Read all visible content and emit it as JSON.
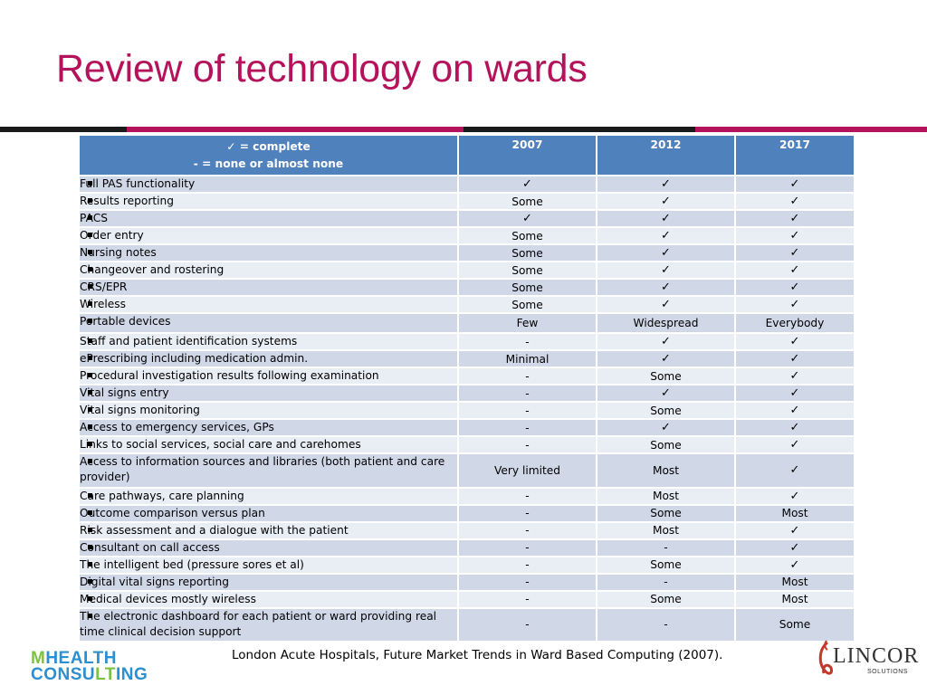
{
  "title": "Review of technology on wards",
  "colors": {
    "title": "#b5125c",
    "header_bg": "#4f81bd",
    "row_odd": "#d0d8e8",
    "row_even": "#e9edf4",
    "rule_dark": "#1a1a1a",
    "rule_accent": "#b5125c"
  },
  "table": {
    "legend_complete": "✓ = complete",
    "legend_none": "-  = none or almost none",
    "years": [
      "2007",
      "2012",
      "2017"
    ],
    "rows": [
      {
        "item": "Full PAS functionality",
        "v2007": "✓",
        "v2012": "✓",
        "v2017": "✓"
      },
      {
        "item": "Results reporting",
        "v2007": "Some",
        "v2012": "✓",
        "v2017": "✓"
      },
      {
        "item": "PACS",
        "v2007": "✓",
        "v2012": "✓",
        "v2017": "✓"
      },
      {
        "item": "Order entry",
        "v2007": "Some",
        "v2012": "✓",
        "v2017": "✓"
      },
      {
        "item": "Nursing notes",
        "v2007": "Some",
        "v2012": "✓",
        "v2017": "✓"
      },
      {
        "item": "Changeover and rostering",
        "v2007": "Some",
        "v2012": "✓",
        "v2017": "✓"
      },
      {
        "item": "CRS/EPR",
        "v2007": "Some",
        "v2012": "✓",
        "v2017": "✓"
      },
      {
        "item": "Wireless",
        "v2007": "Some",
        "v2012": "✓",
        "v2017": "✓"
      },
      {
        "item": "Portable devices",
        "v2007": "Few",
        "v2012": "Widespread",
        "v2017": "Everybody"
      },
      {
        "item": "Staff and patient identification systems",
        "v2007": "-",
        "v2012": "✓",
        "v2017": "✓"
      },
      {
        "item": "ePrescribing including medication admin.",
        "v2007": "Minimal",
        "v2012": "✓",
        "v2017": "✓"
      },
      {
        "item": "Procedural investigation results following examination",
        "v2007": "-",
        "v2012": "Some",
        "v2017": "✓"
      },
      {
        "item": "Vital signs entry",
        "v2007": "-",
        "v2012": "✓",
        "v2017": "✓"
      },
      {
        "item": "Vital signs monitoring",
        "v2007": "-",
        "v2012": "Some",
        "v2017": "✓"
      },
      {
        "item": "Access to emergency services, GPs",
        "v2007": "-",
        "v2012": "✓",
        "v2017": "✓"
      },
      {
        "item": "Links to social services, social care and carehomes",
        "v2007": "-",
        "v2012": "Some",
        "v2017": "✓"
      },
      {
        "item": "Access to information sources and libraries (both patient and care provider)",
        "v2007": "Very limited",
        "v2012": "Most",
        "v2017": "✓"
      },
      {
        "item": "Care pathways, care planning",
        "v2007": "-",
        "v2012": "Most",
        "v2017": "✓"
      },
      {
        "item": "Outcome comparison versus plan",
        "v2007": "-",
        "v2012": "Some",
        "v2017": "Most"
      },
      {
        "item": "Risk assessment and a dialogue with the patient",
        "v2007": "-",
        "v2012": "Most",
        "v2017": "✓"
      },
      {
        "item": "Consultant on call access",
        "v2007": "-",
        "v2012": "-",
        "v2017": "✓"
      },
      {
        "item": "The intelligent bed (pressure sores et al)",
        "v2007": "-",
        "v2012": "Some",
        "v2017": "✓"
      },
      {
        "item": "Digital vital signs reporting",
        "v2007": "-",
        "v2012": "-",
        "v2017": "Most"
      },
      {
        "item": "Medical devices mostly wireless",
        "v2007": "-",
        "v2012": "Some",
        "v2017": "Most"
      },
      {
        "item": "The electronic dashboard for each patient or ward providing real time clinical decision support",
        "v2007": "-",
        "v2012": "-",
        "v2017": "Some"
      }
    ]
  },
  "source": "London Acute Hospitals, Future Market Trends in Ward Based Computing (2007).",
  "logos": {
    "mhealth_line1_a": "M",
    "mhealth_line1_b": "HEALTH",
    "mhealth_line2_a": "CONSU",
    "mhealth_line2_b": "LT",
    "mhealth_line2_c": "ING",
    "lincor_name": "LINCOR",
    "lincor_sub": "SOLUTIONS"
  }
}
